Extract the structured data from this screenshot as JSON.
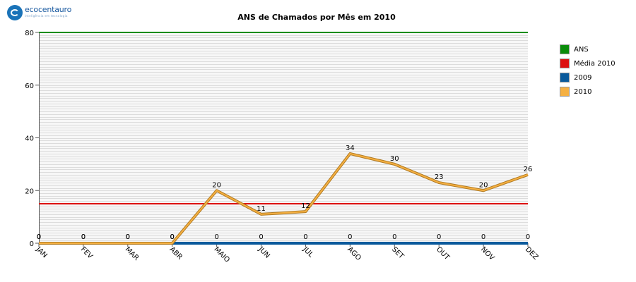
{
  "logo": {
    "name": "ecocentauro",
    "tagline": "inteligência em tecnologia"
  },
  "chart_data": {
    "type": "line",
    "title": "ANS de Chamados por Mês em 2010",
    "xlabel": "",
    "ylabel": "",
    "categories": [
      "JAN",
      "FEV",
      "MAR",
      "ABR",
      "MAIO",
      "JUN",
      "JUL",
      "AGO",
      "SET",
      "OUT",
      "NOV",
      "DEZ"
    ],
    "ylim": [
      0,
      80
    ],
    "yticks": [
      0,
      20,
      40,
      60,
      80
    ],
    "grid": true,
    "legend_position": "right",
    "series": [
      {
        "name": "ANS",
        "color": "#0a8c0a",
        "values": [
          80,
          80,
          80,
          80,
          80,
          80,
          80,
          80,
          80,
          80,
          80,
          80
        ]
      },
      {
        "name": "Média 2010",
        "color": "#dd1111",
        "values": [
          15,
          15,
          15,
          15,
          15,
          15,
          15,
          15,
          15,
          15,
          15,
          15
        ]
      },
      {
        "name": "2009",
        "color": "#0a5a9c",
        "values": [
          0,
          0,
          0,
          0,
          0,
          0,
          0,
          0,
          0,
          0,
          0,
          0
        ],
        "labels": [
          "0",
          "0",
          "0",
          "0",
          "0",
          "0",
          "0",
          "0",
          "0",
          "0",
          "0",
          "0"
        ]
      },
      {
        "name": "2010",
        "color": "#f5b042",
        "values": [
          0,
          0,
          0,
          0,
          20,
          11,
          12,
          34,
          30,
          23,
          20,
          26
        ],
        "labels": [
          "0",
          "0",
          "0",
          "0",
          "20",
          "11",
          "12",
          "34",
          "30",
          "23",
          "20",
          "26"
        ]
      }
    ]
  }
}
